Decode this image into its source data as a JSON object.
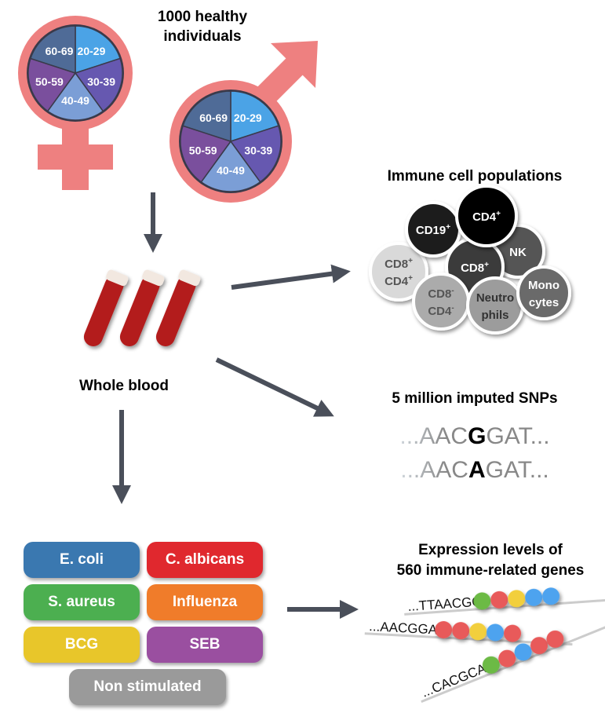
{
  "cohort": {
    "title_line1": "1000 healthy",
    "title_line2": "individuals",
    "age_groups": [
      "20-29",
      "30-39",
      "40-49",
      "50-59",
      "60-69"
    ],
    "age_colors": [
      "#4ba3e6",
      "#6658b0",
      "#7b9ed6",
      "#7a4f9d",
      "#4f6b97"
    ],
    "symbol_color": "#ee8080"
  },
  "whole_blood": {
    "label": "Whole blood"
  },
  "immune_cells": {
    "title": "Immune cell populations",
    "cells": [
      {
        "line1": "CD8",
        "sup1": "+",
        "line2": "CD4",
        "sup2": "+",
        "fill": "#d9d9d9",
        "text": "#555555"
      },
      {
        "line1": "CD19",
        "sup1": "+",
        "fill": "#1f1f1f",
        "text": "#ffffff"
      },
      {
        "line1": "NK",
        "fill": "#555555",
        "text": "#ffffff"
      },
      {
        "line1": "CD8",
        "sup1": "+",
        "fill": "#3a3a3a",
        "text": "#ffffff"
      },
      {
        "line1": "CD4",
        "sup1": "+",
        "fill": "#000000",
        "text": "#ffffff"
      },
      {
        "line1": "CD8",
        "sup1": "-",
        "line2": "CD4",
        "sup2": "-",
        "fill": "#ababab",
        "text": "#555555"
      },
      {
        "line1": "Neutro",
        "line2": "phils",
        "fill": "#9c9c9c",
        "text": "#333333"
      },
      {
        "line1": "Mono",
        "line2": "cytes",
        "fill": "#6b6b6b",
        "text": "#ffffff"
      }
    ]
  },
  "snps": {
    "title": "5 million imputed SNPs",
    "seq1": {
      "prefix": "...AAC",
      "variant": "G",
      "suffix": "GAT..."
    },
    "seq2": {
      "prefix": "...AAC",
      "variant": "A",
      "suffix": "GAT..."
    }
  },
  "stimuli": [
    {
      "label": "E. coli",
      "color": "#3a78b0"
    },
    {
      "label": "C. albicans",
      "color": "#e0282e"
    },
    {
      "label": "S. aureus",
      "color": "#4caf50"
    },
    {
      "label": "Influenza",
      "color": "#f07c2a"
    },
    {
      "label": "BCG",
      "color": "#e8c62a"
    },
    {
      "label": "SEB",
      "color": "#9a4fa0"
    },
    {
      "label": "Non stimulated",
      "color": "#9a9a9a"
    }
  ],
  "expression": {
    "title_line1": "Expression levels of",
    "title_line2": "560 immune-related genes",
    "reads": [
      {
        "seq": "...TTAACGG",
        "dots": [
          "#6cba45",
          "#e85a5a",
          "#f2cf3c",
          "#4da3ef",
          "#4da3ef"
        ]
      },
      {
        "seq": "...AACGGAT",
        "dots": [
          "#e85a5a",
          "#e85a5a",
          "#f2cf3c",
          "#4da3ef",
          "#e85a5a"
        ]
      },
      {
        "seq": "...CACGCAA",
        "dots": [
          "#6cba45",
          "#e85a5a",
          "#4da3ef",
          "#e85a5a",
          "#e85a5a"
        ]
      }
    ]
  }
}
